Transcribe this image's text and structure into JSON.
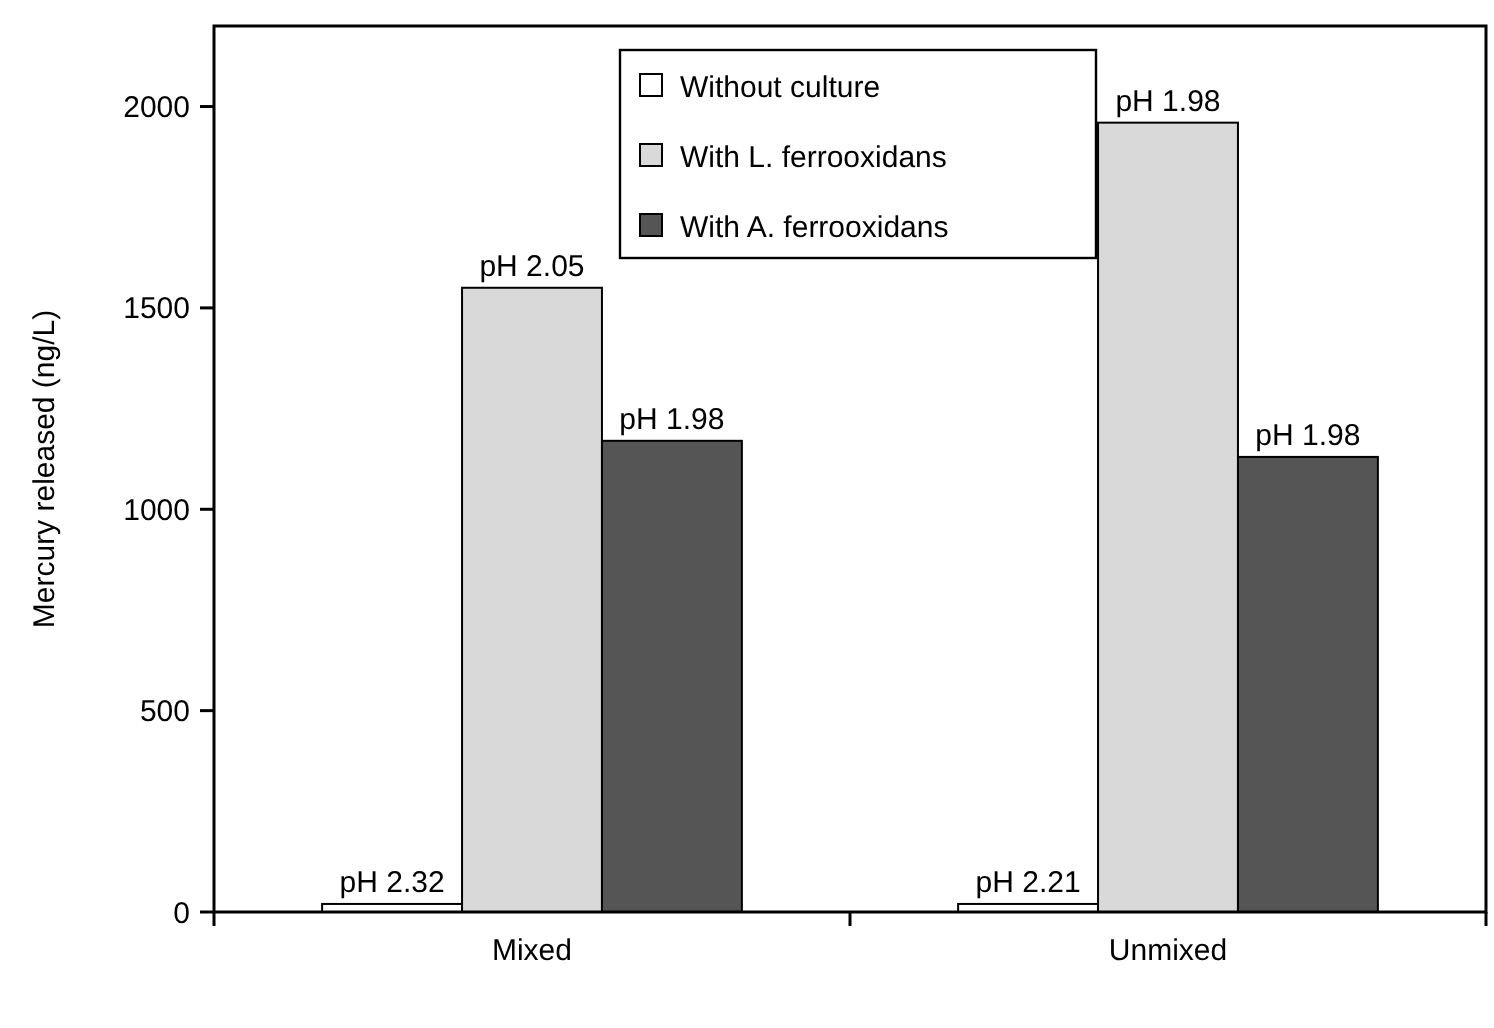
{
  "chart_data": {
    "type": "bar",
    "ylabel": "Mercury released (ng/L)",
    "categories": [
      "Mixed",
      "Unmixed"
    ],
    "series": [
      {
        "name": "Without culture",
        "color": "#ffffff",
        "values": [
          20,
          20
        ],
        "value_labels": [
          "pH 2.32",
          "pH 2.21"
        ]
      },
      {
        "name": "With L. ferrooxidans",
        "color": "#d9d9d9",
        "values": [
          1550,
          1960
        ],
        "value_labels": [
          "pH 2.05",
          "pH 1.98"
        ]
      },
      {
        "name": "With A. ferrooxidans",
        "color": "#555555",
        "values": [
          1170,
          1130
        ],
        "value_labels": [
          "pH 1.98",
          "pH 1.98"
        ]
      }
    ],
    "ylim": [
      0,
      2200
    ],
    "yticks": [
      0,
      500,
      1000,
      1500,
      2000
    ],
    "grid": false,
    "legend": "top"
  }
}
